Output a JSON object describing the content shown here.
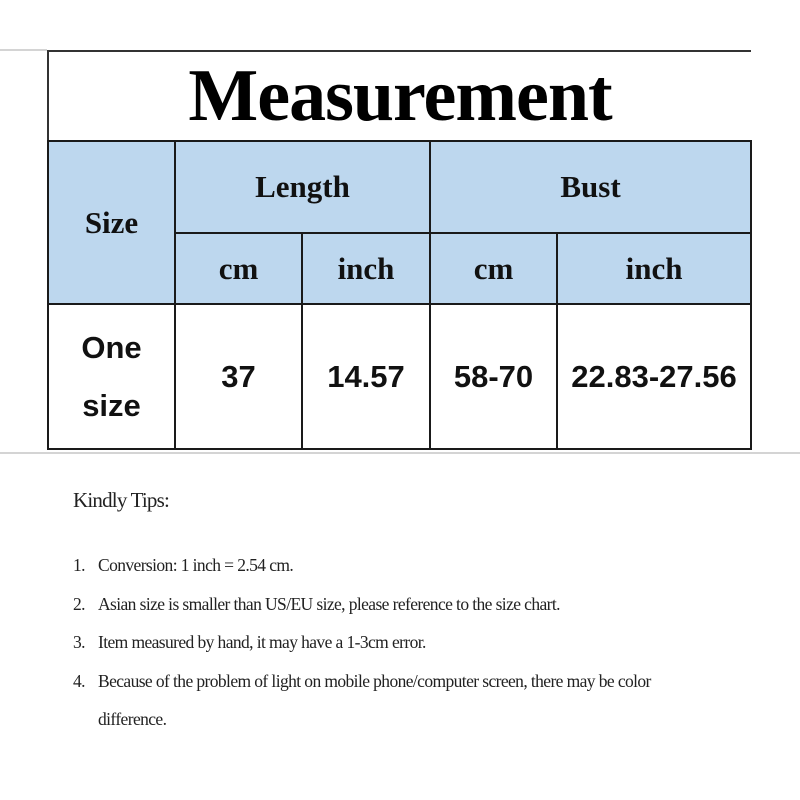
{
  "table": {
    "title": "Measurement",
    "header": {
      "size": "Size",
      "length": "Length",
      "bust": "Bust",
      "units": [
        "cm",
        "inch",
        "cm",
        "inch"
      ]
    },
    "rows": [
      {
        "size": "One size",
        "length_cm": "37",
        "length_inch": "14.57",
        "bust_cm": "58-70",
        "bust_inch": "22.83-27.56"
      }
    ],
    "header_color": "#bdd7ee"
  },
  "tips": {
    "title": "Kindly Tips:",
    "items": [
      {
        "num": "1.",
        "text": "Conversion: 1 inch = 2.54 cm."
      },
      {
        "num": "2.",
        "text": "Asian size is smaller than US/EU size, please reference to the size chart."
      },
      {
        "num": "3.",
        "text": "Item measured by hand, it may have a 1-3cm error."
      },
      {
        "num": "4.",
        "text": "Because of the problem of light on mobile phone/computer screen, there may be color difference."
      }
    ]
  }
}
